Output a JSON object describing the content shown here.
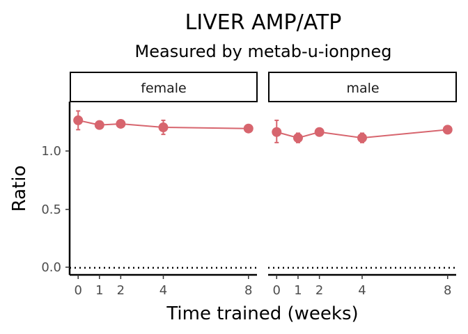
{
  "chart_data": {
    "type": "line",
    "title": "LIVER AMP/ATP",
    "subtitle": "Measured by metab-u-ionpneg",
    "xlabel": "Time trained (weeks)",
    "ylabel": "Ratio",
    "xlim": [
      -0.4,
      8.4
    ],
    "ylim": [
      -0.06,
      1.42
    ],
    "x_ticks": [
      0,
      1,
      2,
      4,
      8
    ],
    "x_tick_labels": [
      "0",
      "1",
      "2",
      "4",
      "8"
    ],
    "y_ticks": [
      0.0,
      0.5,
      1.0
    ],
    "y_tick_labels": [
      "0.0",
      "0.5",
      "1.0"
    ],
    "reference_line": {
      "y": 0,
      "style": "dotted"
    },
    "grid": false,
    "color": "#D7656E",
    "panels": [
      {
        "label": "female",
        "x": [
          0,
          1,
          2,
          4,
          8
        ],
        "y": [
          1.26,
          1.22,
          1.23,
          1.2,
          1.19
        ],
        "err_low": [
          1.18,
          1.2,
          1.21,
          1.14,
          1.18
        ],
        "err_high": [
          1.34,
          1.24,
          1.25,
          1.26,
          1.21
        ]
      },
      {
        "label": "male",
        "x": [
          0,
          1,
          2,
          4,
          8
        ],
        "y": [
          1.16,
          1.11,
          1.16,
          1.11,
          1.18
        ],
        "err_low": [
          1.07,
          1.07,
          1.14,
          1.07,
          1.15
        ],
        "err_high": [
          1.26,
          1.15,
          1.18,
          1.15,
          1.21
        ]
      }
    ]
  }
}
